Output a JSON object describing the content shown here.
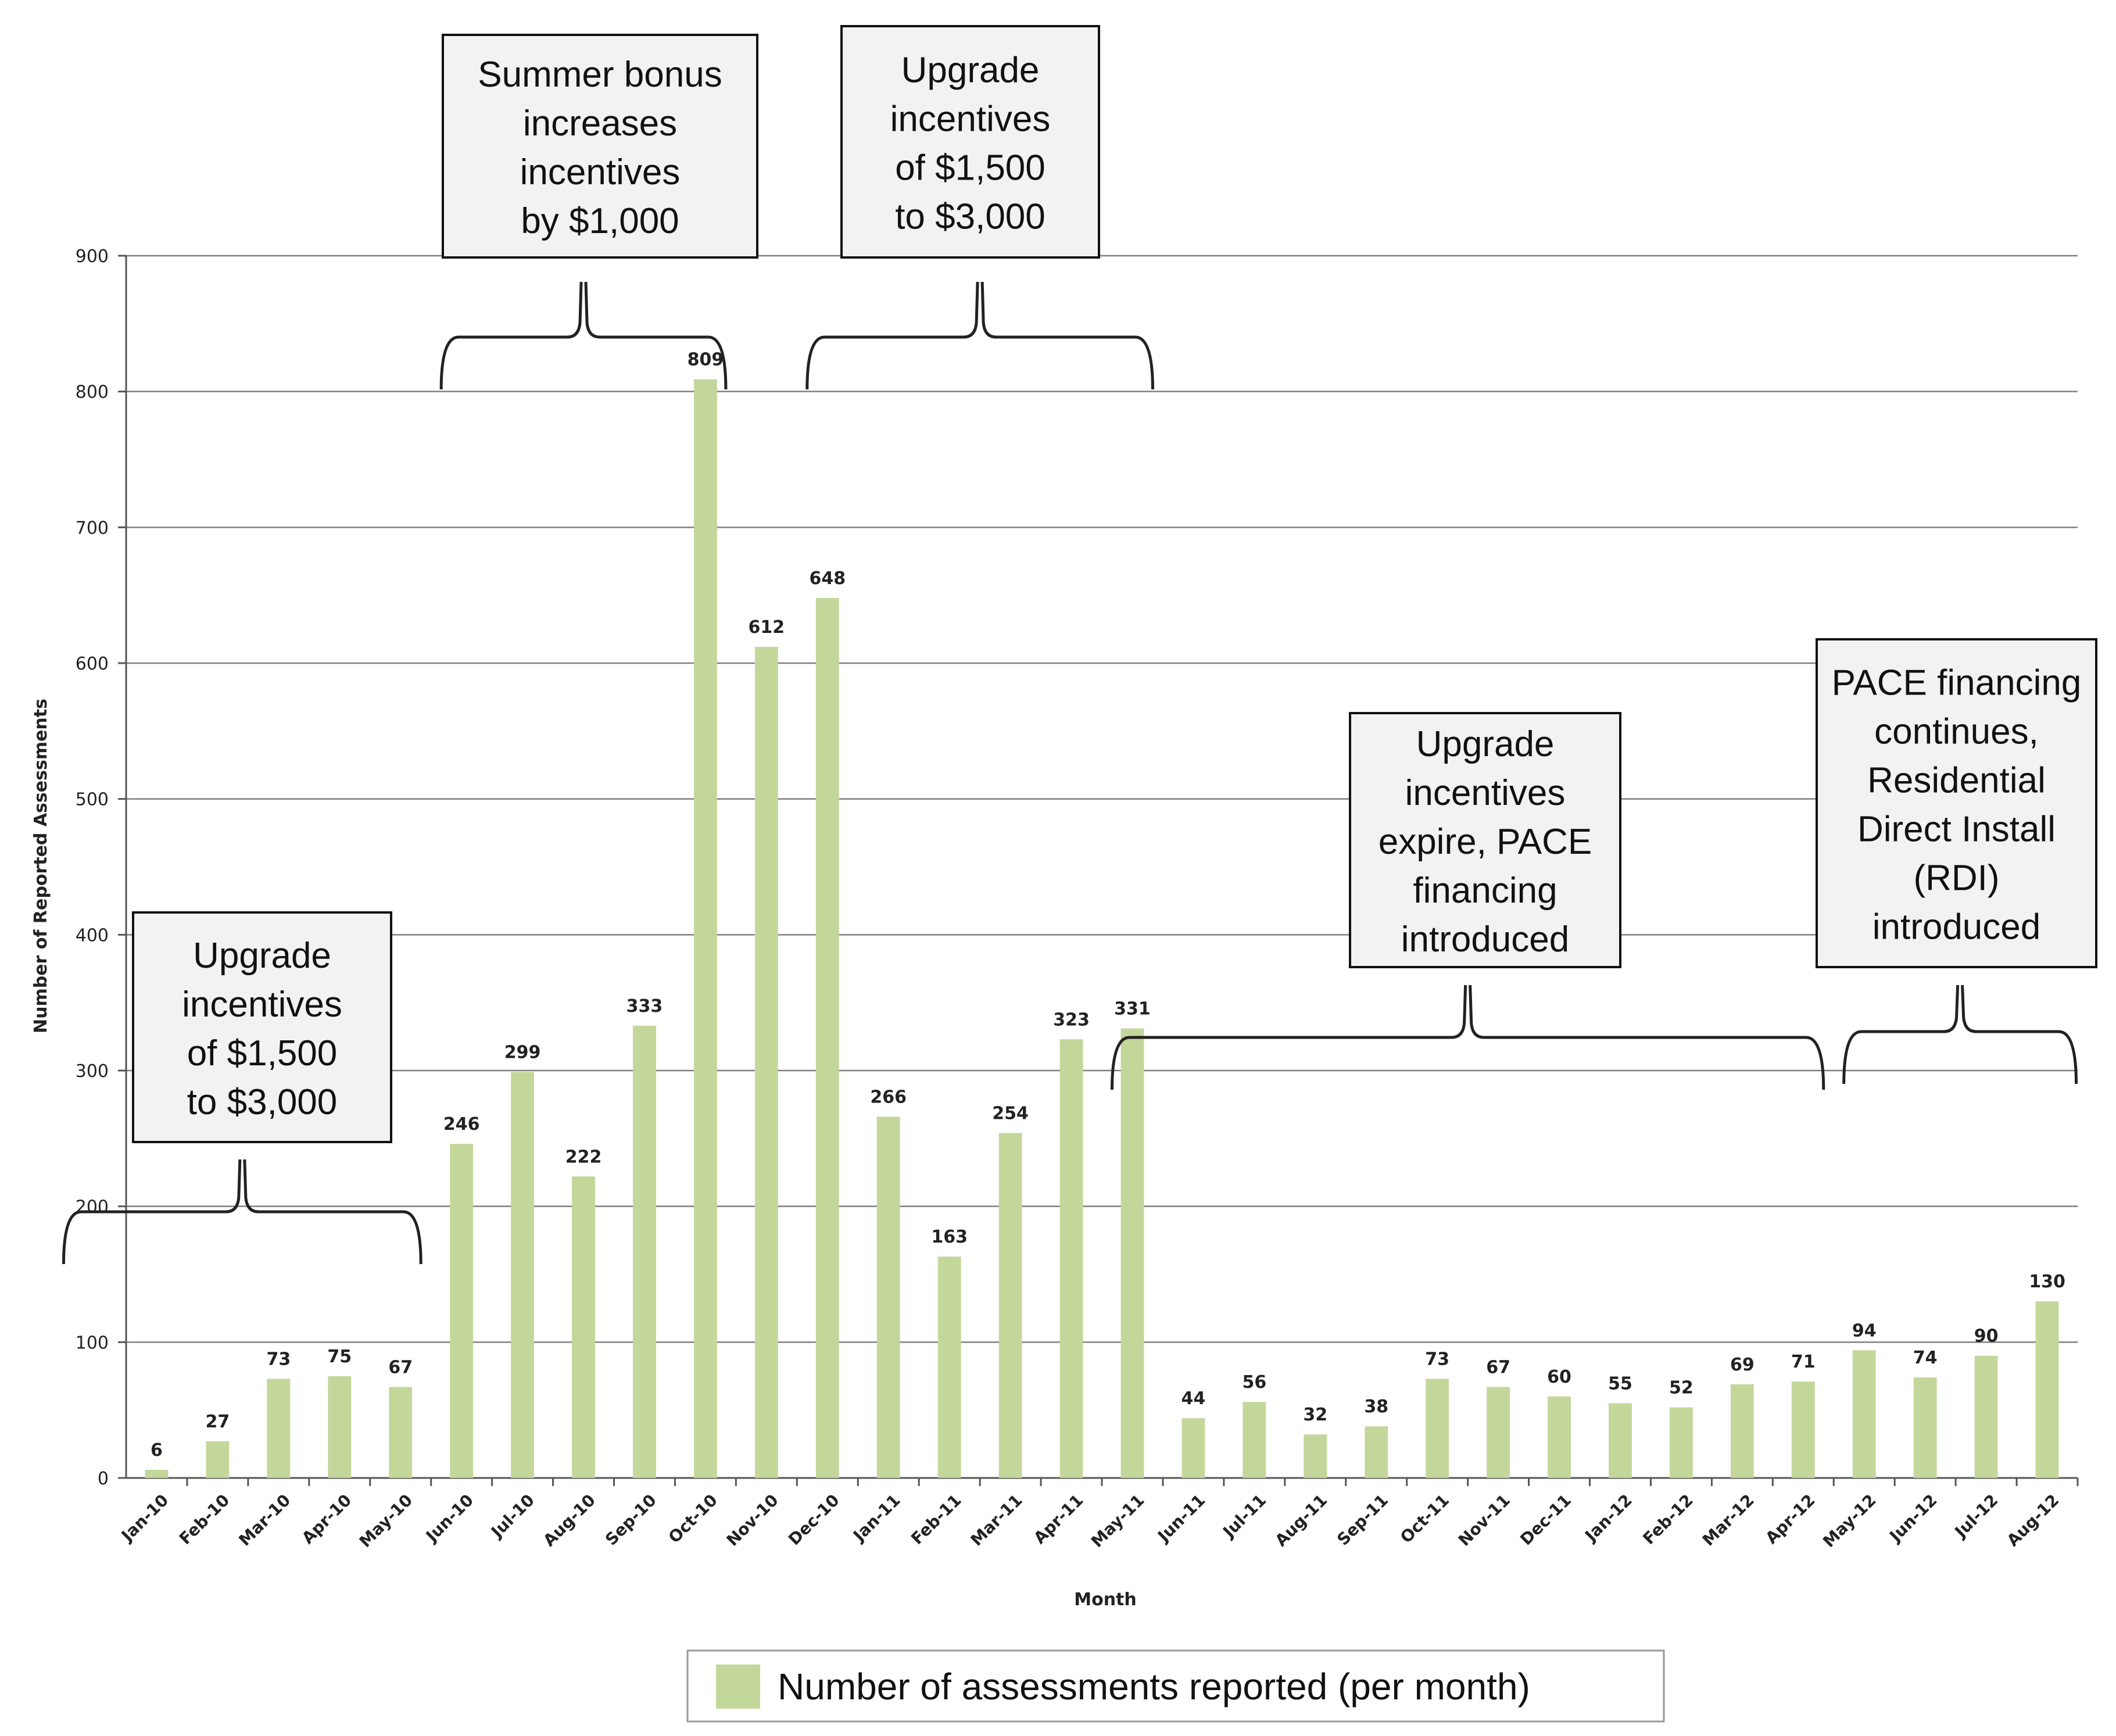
{
  "chart_data": {
    "type": "bar",
    "title": "",
    "xlabel": "Month",
    "ylabel": "Number of Reported Assessments",
    "ylim": [
      0,
      900
    ],
    "yticks": [
      0,
      100,
      200,
      300,
      400,
      500,
      600,
      700,
      800,
      900
    ],
    "grid": true,
    "categories": [
      "Jan-10",
      "Feb-10",
      "Mar-10",
      "Apr-10",
      "May-10",
      "Jun-10",
      "Jul-10",
      "Aug-10",
      "Sep-10",
      "Oct-10",
      "Nov-10",
      "Dec-10",
      "Jan-11",
      "Feb-11",
      "Mar-11",
      "Apr-11",
      "May-11",
      "Jun-11",
      "Jul-11",
      "Aug-11",
      "Sep-11",
      "Oct-11",
      "Nov-11",
      "Dec-11",
      "Jan-12",
      "Feb-12",
      "Mar-12",
      "Apr-12",
      "May-12",
      "Jun-12",
      "Jul-12",
      "Aug-12"
    ],
    "series": [
      {
        "name": "Number of assessments reported (per month)",
        "color": "#c4d79b",
        "values": [
          6,
          27,
          73,
          75,
          67,
          246,
          299,
          222,
          333,
          809,
          612,
          648,
          266,
          163,
          254,
          323,
          331,
          44,
          56,
          32,
          38,
          73,
          67,
          60,
          55,
          52,
          69,
          71,
          94,
          74,
          90,
          130
        ]
      }
    ],
    "legend": {
      "position": "bottom",
      "label": "Number of assessments reported (per month)"
    },
    "annotations": [
      {
        "id": "ann1",
        "lines": [
          "Upgrade",
          "incentives",
          "of $1,500",
          "to $3,000"
        ],
        "start": "Jan-10",
        "end": "May-10"
      },
      {
        "id": "ann2",
        "lines": [
          "Summer bonus",
          "increases",
          "incentives",
          "by $1,000"
        ],
        "start": "Jun-10",
        "end": "Oct-10"
      },
      {
        "id": "ann3",
        "lines": [
          "Upgrade",
          "incentives",
          "of $1,500",
          "to $3,000"
        ],
        "start": "Dec-10",
        "end": "May-11"
      },
      {
        "id": "ann4",
        "lines": [
          "Upgrade",
          "incentives",
          "expire, PACE",
          "financing",
          "introduced"
        ],
        "start": "May-11",
        "end": "Apr-12"
      },
      {
        "id": "ann5",
        "lines": [
          "PACE financing",
          "continues,",
          "Residential",
          "Direct Install",
          "(RDI)",
          "introduced"
        ],
        "start": "May-12",
        "end": "Aug-12"
      }
    ]
  }
}
